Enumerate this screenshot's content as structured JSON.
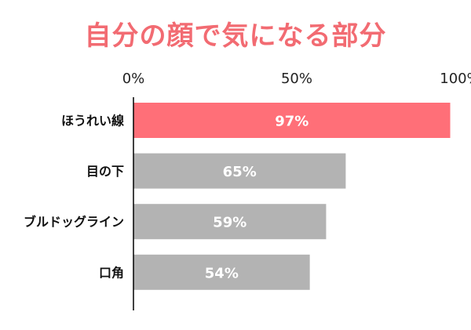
{
  "chart_data": {
    "type": "bar",
    "orientation": "horizontal",
    "title": "自分の顔で気になる部分",
    "categories": [
      "ほうれい線",
      "目の下",
      "ブルドッグライン",
      "口角"
    ],
    "values": [
      97,
      65,
      59,
      54
    ],
    "value_labels": [
      "97%",
      "65%",
      "59%",
      "54%"
    ],
    "xlim": [
      0,
      100
    ],
    "xticks": [
      0,
      50,
      100
    ],
    "xtick_labels": [
      "0%",
      "50%",
      "100%"
    ],
    "x_axis_position": "top",
    "grid": false,
    "legend": "none",
    "colors": {
      "title": "#f26b72",
      "highlight_bar": "#ff6f78",
      "bar": "#b3b3b3",
      "value_label": "#ffffff",
      "axis": "#000000"
    }
  }
}
